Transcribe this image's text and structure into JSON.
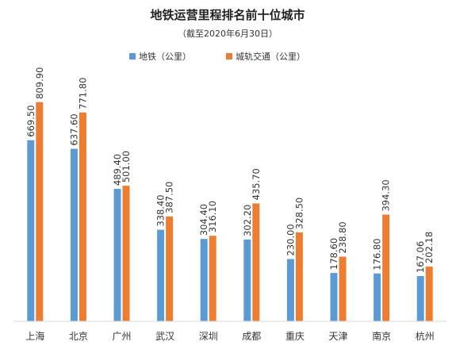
{
  "chart_data": {
    "type": "bar",
    "title": "地铁运营里程排名前十位城市",
    "subtitle": "（截至2020年6月30日）",
    "xlabel": "",
    "ylabel": "",
    "ylim": [
      0,
      900
    ],
    "grid": false,
    "legend_position": "top-center",
    "categories": [
      "上海",
      "北京",
      "广州",
      "武汉",
      "深圳",
      "成都",
      "重庆",
      "天津",
      "南京",
      "杭州"
    ],
    "series": [
      {
        "name": "地铁（公里）",
        "color": "#5B9BD5",
        "values": [
          669.5,
          637.6,
          489.4,
          338.4,
          304.4,
          302.2,
          230.0,
          178.6,
          176.8,
          167.06
        ],
        "labels": [
          "669.50",
          "637.60",
          "489.40",
          "338.40",
          "304.40",
          "302.20",
          "230.00",
          "178.60",
          "176.80",
          "167.06"
        ]
      },
      {
        "name": "城轨交通（公里）",
        "color": "#ED7D31",
        "values": [
          809.9,
          771.8,
          501.0,
          387.5,
          316.1,
          435.7,
          328.5,
          238.8,
          394.3,
          202.18
        ],
        "labels": [
          "809.90",
          "771.80",
          "501.00",
          "387.50",
          "316.10",
          "435.70",
          "328.50",
          "238.80",
          "394.30",
          "202.18"
        ]
      }
    ]
  }
}
